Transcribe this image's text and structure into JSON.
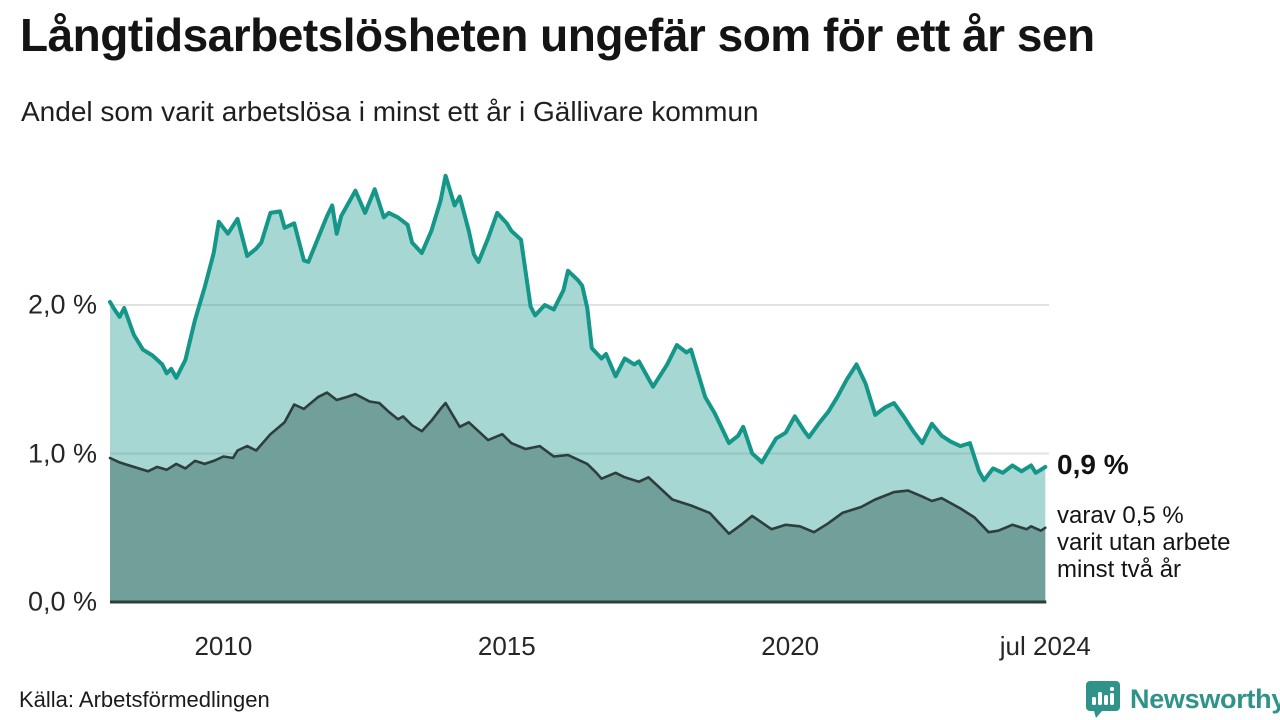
{
  "header": {
    "title": "Långtidsarbetslösheten ungefär som för ett år sen",
    "subtitle": "Andel som varit arbetslösa i minst ett år i Gällivare kommun"
  },
  "annotation": {
    "value_label": "0,9 %",
    "description_lines": [
      "varav 0,5 %",
      "varit utan arbete",
      "minst två år"
    ]
  },
  "footer": {
    "source": "Källa: Arbetsförmedlingen",
    "brand": "Newsworthy"
  },
  "colors": {
    "accent_teal": "#149688",
    "fill_light": "#a8d5ce",
    "fill_dark": "#719f99",
    "line_dark": "#2d3e3c",
    "gridline": "#e2e2e2",
    "brand_teal": "#2f938a",
    "text": "#141414"
  },
  "chart_data": {
    "type": "area",
    "title": "Långtidsarbetslösheten ungefär som för ett år sen",
    "subtitle": "Andel som varit arbetslösa i minst ett år i Gällivare kommun",
    "unit": "%",
    "grid": "horizontal",
    "legend_position": "none",
    "xlim": [
      2008.0,
      2024.5
    ],
    "ylim": [
      0,
      2.95
    ],
    "y_ticks": [
      {
        "label": "0,0 %",
        "value": 0.0
      },
      {
        "label": "1,0 %",
        "value": 1.0
      },
      {
        "label": "2,0 %",
        "value": 2.0
      }
    ],
    "x_ticks": [
      {
        "label": "2010",
        "year": 2010.0
      },
      {
        "label": "2015",
        "year": 2015.0
      },
      {
        "label": "2020",
        "year": 2020.0
      },
      {
        "label": "jul 2024",
        "year": 2024.5
      }
    ],
    "series": [
      {
        "name": "Andel arbetslösa minst ett år",
        "line_color": "#149688",
        "line_width": 4,
        "fill_color": "rgba(20,150,136,0.38)",
        "end_value": 0.9,
        "end_value_label": "0,9 %",
        "points": [
          [
            2008.0,
            2.02
          ],
          [
            2008.08,
            1.97
          ],
          [
            2008.17,
            1.92
          ],
          [
            2008.25,
            1.98
          ],
          [
            2008.42,
            1.8
          ],
          [
            2008.58,
            1.7
          ],
          [
            2008.75,
            1.66
          ],
          [
            2008.92,
            1.6
          ],
          [
            2009.0,
            1.54
          ],
          [
            2009.08,
            1.57
          ],
          [
            2009.17,
            1.51
          ],
          [
            2009.33,
            1.63
          ],
          [
            2009.5,
            1.9
          ],
          [
            2009.67,
            2.12
          ],
          [
            2009.83,
            2.35
          ],
          [
            2009.92,
            2.56
          ],
          [
            2010.08,
            2.48
          ],
          [
            2010.25,
            2.58
          ],
          [
            2010.42,
            2.33
          ],
          [
            2010.58,
            2.38
          ],
          [
            2010.67,
            2.42
          ],
          [
            2010.83,
            2.62
          ],
          [
            2011.0,
            2.63
          ],
          [
            2011.08,
            2.52
          ],
          [
            2011.25,
            2.55
          ],
          [
            2011.42,
            2.3
          ],
          [
            2011.5,
            2.29
          ],
          [
            2011.67,
            2.45
          ],
          [
            2011.83,
            2.6
          ],
          [
            2011.92,
            2.67
          ],
          [
            2012.0,
            2.48
          ],
          [
            2012.08,
            2.6
          ],
          [
            2012.33,
            2.77
          ],
          [
            2012.5,
            2.62
          ],
          [
            2012.67,
            2.78
          ],
          [
            2012.83,
            2.59
          ],
          [
            2012.92,
            2.62
          ],
          [
            2013.08,
            2.59
          ],
          [
            2013.25,
            2.54
          ],
          [
            2013.33,
            2.42
          ],
          [
            2013.5,
            2.35
          ],
          [
            2013.67,
            2.5
          ],
          [
            2013.83,
            2.7
          ],
          [
            2013.92,
            2.87
          ],
          [
            2014.08,
            2.67
          ],
          [
            2014.17,
            2.73
          ],
          [
            2014.33,
            2.5
          ],
          [
            2014.42,
            2.34
          ],
          [
            2014.5,
            2.29
          ],
          [
            2014.67,
            2.45
          ],
          [
            2014.83,
            2.62
          ],
          [
            2015.0,
            2.55
          ],
          [
            2015.08,
            2.5
          ],
          [
            2015.25,
            2.44
          ],
          [
            2015.42,
            1.99
          ],
          [
            2015.5,
            1.93
          ],
          [
            2015.67,
            2.0
          ],
          [
            2015.83,
            1.97
          ],
          [
            2016.0,
            2.1
          ],
          [
            2016.08,
            2.23
          ],
          [
            2016.25,
            2.17
          ],
          [
            2016.33,
            2.13
          ],
          [
            2016.42,
            1.98
          ],
          [
            2016.5,
            1.71
          ],
          [
            2016.67,
            1.64
          ],
          [
            2016.75,
            1.67
          ],
          [
            2016.92,
            1.52
          ],
          [
            2017.08,
            1.64
          ],
          [
            2017.25,
            1.6
          ],
          [
            2017.33,
            1.62
          ],
          [
            2017.58,
            1.45
          ],
          [
            2017.83,
            1.6
          ],
          [
            2018.0,
            1.73
          ],
          [
            2018.17,
            1.68
          ],
          [
            2018.25,
            1.7
          ],
          [
            2018.5,
            1.38
          ],
          [
            2018.67,
            1.27
          ],
          [
            2018.92,
            1.07
          ],
          [
            2019.08,
            1.12
          ],
          [
            2019.17,
            1.18
          ],
          [
            2019.33,
            1.0
          ],
          [
            2019.42,
            0.97
          ],
          [
            2019.5,
            0.94
          ],
          [
            2019.75,
            1.1
          ],
          [
            2019.92,
            1.14
          ],
          [
            2020.08,
            1.25
          ],
          [
            2020.25,
            1.15
          ],
          [
            2020.33,
            1.11
          ],
          [
            2020.5,
            1.2
          ],
          [
            2020.67,
            1.28
          ],
          [
            2020.83,
            1.38
          ],
          [
            2021.0,
            1.5
          ],
          [
            2021.17,
            1.6
          ],
          [
            2021.33,
            1.47
          ],
          [
            2021.5,
            1.26
          ],
          [
            2021.67,
            1.31
          ],
          [
            2021.83,
            1.34
          ],
          [
            2022.0,
            1.25
          ],
          [
            2022.17,
            1.15
          ],
          [
            2022.33,
            1.07
          ],
          [
            2022.5,
            1.2
          ],
          [
            2022.67,
            1.12
          ],
          [
            2022.83,
            1.08
          ],
          [
            2023.0,
            1.05
          ],
          [
            2023.17,
            1.07
          ],
          [
            2023.33,
            0.88
          ],
          [
            2023.42,
            0.82
          ],
          [
            2023.58,
            0.9
          ],
          [
            2023.75,
            0.87
          ],
          [
            2023.92,
            0.92
          ],
          [
            2024.08,
            0.88
          ],
          [
            2024.25,
            0.92
          ],
          [
            2024.33,
            0.87
          ],
          [
            2024.42,
            0.89
          ],
          [
            2024.5,
            0.91
          ]
        ]
      },
      {
        "name": "Andel utan arbete minst två år",
        "line_color": "#2d3e3c",
        "line_width": 2.6,
        "fill_color": "#719f99",
        "end_value": 0.5,
        "end_value_label": "0,5 %",
        "points": [
          [
            2008.0,
            0.97
          ],
          [
            2008.17,
            0.94
          ],
          [
            2008.25,
            0.93
          ],
          [
            2008.42,
            0.91
          ],
          [
            2008.67,
            0.88
          ],
          [
            2008.83,
            0.91
          ],
          [
            2009.0,
            0.89
          ],
          [
            2009.17,
            0.93
          ],
          [
            2009.33,
            0.9
          ],
          [
            2009.5,
            0.95
          ],
          [
            2009.67,
            0.93
          ],
          [
            2009.83,
            0.95
          ],
          [
            2010.0,
            0.98
          ],
          [
            2010.17,
            0.97
          ],
          [
            2010.25,
            1.02
          ],
          [
            2010.42,
            1.05
          ],
          [
            2010.58,
            1.02
          ],
          [
            2010.83,
            1.13
          ],
          [
            2011.08,
            1.21
          ],
          [
            2011.25,
            1.33
          ],
          [
            2011.42,
            1.3
          ],
          [
            2011.67,
            1.38
          ],
          [
            2011.83,
            1.41
          ],
          [
            2012.0,
            1.36
          ],
          [
            2012.17,
            1.38
          ],
          [
            2012.33,
            1.4
          ],
          [
            2012.58,
            1.35
          ],
          [
            2012.75,
            1.34
          ],
          [
            2012.92,
            1.28
          ],
          [
            2013.08,
            1.23
          ],
          [
            2013.17,
            1.25
          ],
          [
            2013.33,
            1.19
          ],
          [
            2013.5,
            1.15
          ],
          [
            2013.67,
            1.22
          ],
          [
            2013.83,
            1.3
          ],
          [
            2013.92,
            1.34
          ],
          [
            2014.17,
            1.18
          ],
          [
            2014.33,
            1.21
          ],
          [
            2014.67,
            1.09
          ],
          [
            2014.92,
            1.13
          ],
          [
            2015.08,
            1.07
          ],
          [
            2015.33,
            1.03
          ],
          [
            2015.58,
            1.05
          ],
          [
            2015.83,
            0.98
          ],
          [
            2016.08,
            0.99
          ],
          [
            2016.42,
            0.93
          ],
          [
            2016.58,
            0.87
          ],
          [
            2016.67,
            0.83
          ],
          [
            2016.92,
            0.87
          ],
          [
            2017.08,
            0.84
          ],
          [
            2017.33,
            0.81
          ],
          [
            2017.5,
            0.84
          ],
          [
            2017.92,
            0.69
          ],
          [
            2018.25,
            0.65
          ],
          [
            2018.58,
            0.6
          ],
          [
            2018.92,
            0.46
          ],
          [
            2019.17,
            0.53
          ],
          [
            2019.33,
            0.58
          ],
          [
            2019.67,
            0.49
          ],
          [
            2019.92,
            0.52
          ],
          [
            2020.17,
            0.51
          ],
          [
            2020.42,
            0.47
          ],
          [
            2020.67,
            0.53
          ],
          [
            2020.92,
            0.6
          ],
          [
            2021.25,
            0.64
          ],
          [
            2021.5,
            0.69
          ],
          [
            2021.83,
            0.74
          ],
          [
            2022.08,
            0.75
          ],
          [
            2022.33,
            0.71
          ],
          [
            2022.5,
            0.68
          ],
          [
            2022.67,
            0.7
          ],
          [
            2023.0,
            0.63
          ],
          [
            2023.25,
            0.57
          ],
          [
            2023.5,
            0.47
          ],
          [
            2023.67,
            0.48
          ],
          [
            2023.92,
            0.52
          ],
          [
            2024.17,
            0.49
          ],
          [
            2024.25,
            0.51
          ],
          [
            2024.42,
            0.48
          ],
          [
            2024.5,
            0.5
          ]
        ]
      }
    ]
  }
}
